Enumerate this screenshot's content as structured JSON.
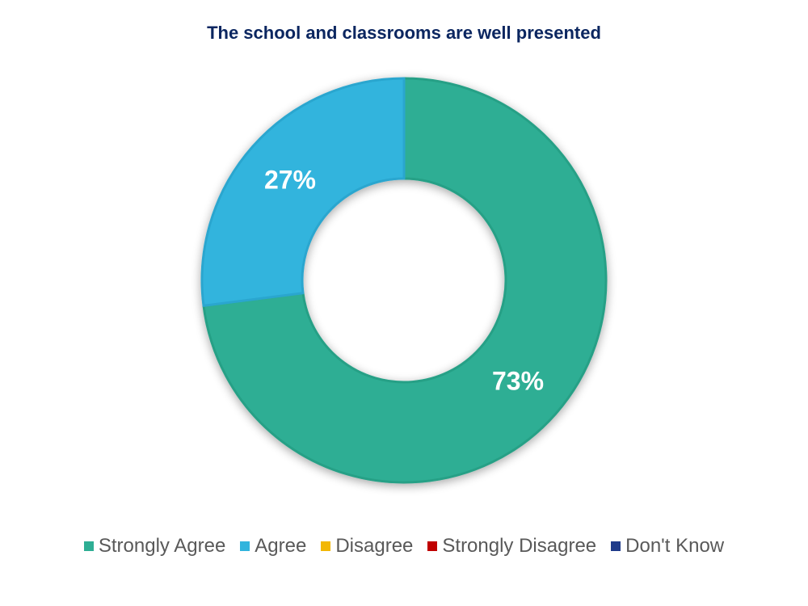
{
  "chart_data": {
    "type": "pie",
    "variant": "donut",
    "title": "The school and classrooms are well presented",
    "categories": [
      "Strongly Agree",
      "Agree",
      "Disagree",
      "Strongly Disagree",
      "Don't Know"
    ],
    "values": [
      73,
      27,
      0,
      0,
      0
    ],
    "value_labels": [
      "73%",
      "27%",
      "",
      "",
      ""
    ],
    "colors": [
      "#2eae94",
      "#31b4dd",
      "#f2b705",
      "#c00000",
      "#1f3b8a"
    ],
    "legend_position": "bottom"
  },
  "legend": {
    "items": [
      {
        "label": "Strongly Agree",
        "color": "#2eae94"
      },
      {
        "label": "Agree",
        "color": "#31b4dd"
      },
      {
        "label": "Disagree",
        "color": "#f2b705"
      },
      {
        "label": "Strongly Disagree",
        "color": "#c00000"
      },
      {
        "label": "Don't Know",
        "color": "#1f3b8a"
      }
    ]
  }
}
